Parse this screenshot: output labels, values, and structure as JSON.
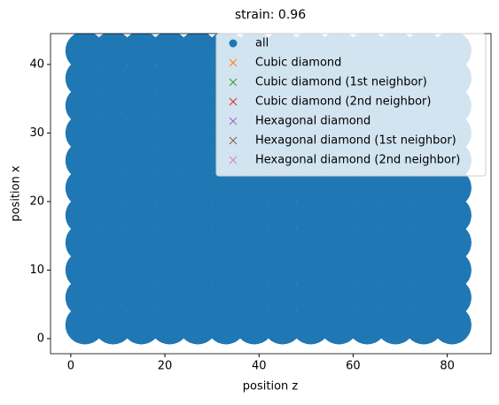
{
  "chart_data": {
    "type": "scatter",
    "title": "strain: 0.96",
    "x_label": "position z",
    "y_label": "position x",
    "xlim": [
      -4.3,
      89.3
    ],
    "ylim": [
      -2.2,
      44.5
    ],
    "xticks": [
      0,
      20,
      40,
      60,
      80
    ],
    "yticks": [
      0,
      10,
      20,
      30,
      40
    ],
    "legend": "upper right",
    "series": [
      {
        "name": "all",
        "color": "#1f77b4",
        "marker": "o",
        "x": [
          3,
          9,
          15,
          21,
          27,
          33,
          39,
          45,
          51,
          57,
          63,
          69,
          75,
          81,
          3,
          9,
          15,
          21,
          27,
          33,
          39,
          45,
          51,
          57,
          63,
          69,
          75,
          81,
          3,
          9,
          15,
          21,
          27,
          33,
          39,
          45,
          51,
          57,
          63,
          69,
          75,
          81,
          3,
          9,
          15,
          21,
          27,
          33,
          39,
          45,
          51,
          57,
          63,
          69,
          75,
          81,
          3,
          9,
          15,
          21,
          27,
          33,
          39,
          45,
          51,
          57,
          63,
          69,
          75,
          81,
          3,
          9,
          15,
          21,
          27,
          33,
          39,
          45,
          51,
          57,
          63,
          69,
          75,
          81,
          3,
          9,
          15,
          21,
          27,
          33,
          39,
          45,
          51,
          57,
          63,
          69,
          75,
          81,
          3,
          9,
          15,
          21,
          27,
          33,
          39,
          45,
          51,
          57,
          63,
          69,
          75,
          81,
          3,
          9,
          15,
          21,
          27,
          33,
          39,
          45,
          51,
          57,
          63,
          69,
          75,
          81,
          3,
          9,
          15,
          21,
          27,
          33,
          39,
          45,
          51,
          57,
          63,
          69,
          75,
          81,
          3,
          9,
          15,
          21,
          27,
          33,
          39,
          45,
          51,
          57,
          63,
          69,
          75,
          81
        ],
        "y": [
          2,
          2,
          2,
          2,
          2,
          2,
          2,
          2,
          2,
          2,
          2,
          2,
          2,
          2,
          6,
          6,
          6,
          6,
          6,
          6,
          6,
          6,
          6,
          6,
          6,
          6,
          6,
          6,
          10,
          10,
          10,
          10,
          10,
          10,
          10,
          10,
          10,
          10,
          10,
          10,
          10,
          10,
          14,
          14,
          14,
          14,
          14,
          14,
          14,
          14,
          14,
          14,
          14,
          14,
          14,
          14,
          18,
          18,
          18,
          18,
          18,
          18,
          18,
          18,
          18,
          18,
          18,
          18,
          18,
          18,
          22,
          22,
          22,
          22,
          22,
          22,
          22,
          22,
          22,
          22,
          22,
          22,
          22,
          22,
          26,
          26,
          26,
          26,
          26,
          26,
          26,
          26,
          26,
          26,
          26,
          26,
          26,
          26,
          30,
          30,
          30,
          30,
          30,
          30,
          30,
          30,
          30,
          30,
          30,
          30,
          30,
          30,
          34,
          34,
          34,
          34,
          34,
          34,
          34,
          34,
          34,
          34,
          34,
          34,
          34,
          34,
          38,
          38,
          38,
          38,
          38,
          38,
          38,
          38,
          38,
          38,
          38,
          38,
          38,
          38,
          42,
          42,
          42,
          42,
          42,
          42,
          42,
          42,
          42,
          42,
          42,
          42,
          42,
          42
        ]
      },
      {
        "name": "Cubic diamond",
        "color": "#ff7f0e",
        "marker": "x",
        "x": [],
        "y": []
      },
      {
        "name": "Cubic diamond (1st neighbor)",
        "color": "#2ca02c",
        "marker": "x",
        "x": [],
        "y": []
      },
      {
        "name": "Cubic diamond (2nd neighbor)",
        "color": "#d62728",
        "marker": "x",
        "x": [],
        "y": []
      },
      {
        "name": "Hexagonal diamond",
        "color": "#9467bd",
        "marker": "x",
        "x": [],
        "y": []
      },
      {
        "name": "Hexagonal diamond (1st neighbor)",
        "color": "#8c564b",
        "marker": "x",
        "x": [],
        "y": []
      },
      {
        "name": "Hexagonal diamond (2nd neighbor)",
        "color": "#e377c2",
        "marker": "x",
        "x": [],
        "y": []
      }
    ]
  }
}
